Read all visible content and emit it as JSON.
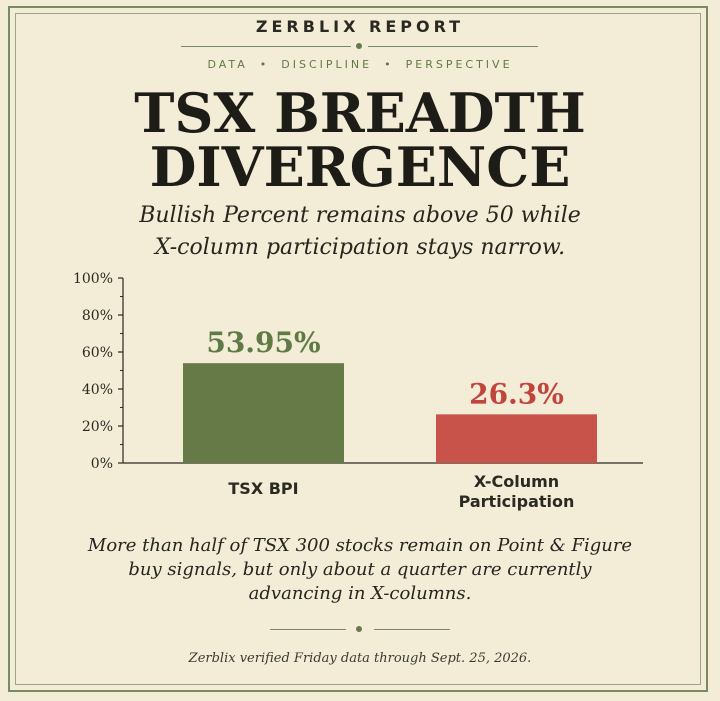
{
  "header": {
    "brand": "ZERBLIX REPORT",
    "tagline": [
      "DATA",
      "DISCIPLINE",
      "PERSPECTIVE"
    ],
    "tagline_separator": "•"
  },
  "title_lines": [
    "TSX BREADTH",
    "DIVERGENCE"
  ],
  "subtitle_lines": [
    "Bullish Percent remains above 50 while",
    "X-column participation stays narrow."
  ],
  "chart_data": {
    "type": "bar",
    "categories": [
      [
        "TSX BPI"
      ],
      [
        "X-Column",
        "Participation"
      ]
    ],
    "values": [
      53.95,
      26.3
    ],
    "data_labels": [
      "53.95%",
      "26.3%"
    ],
    "colors": [
      "#667a48",
      "#c8534a"
    ],
    "label_colors": [
      "#5f7a44",
      "#c0453c"
    ],
    "ylim": [
      0,
      100
    ],
    "yticks": [
      0,
      20,
      40,
      60,
      80,
      100
    ],
    "ytick_labels": [
      "0%",
      "20%",
      "40%",
      "60%",
      "80%",
      "100%"
    ],
    "grid": false,
    "title": "",
    "xlabel": "",
    "ylabel": ""
  },
  "body_text_lines": [
    "More than half of TSX 300 stocks remain on Point & Figure",
    "buy signals, but only about a quarter are currently",
    "advancing in X-columns."
  ],
  "footnote": "Zerblix verified Friday data through Sept. 25, 2026.",
  "colors": {
    "background": "#f3ecd6",
    "accent_green": "#667a48",
    "accent_red": "#c8534a",
    "ink": "#1d1c17"
  }
}
